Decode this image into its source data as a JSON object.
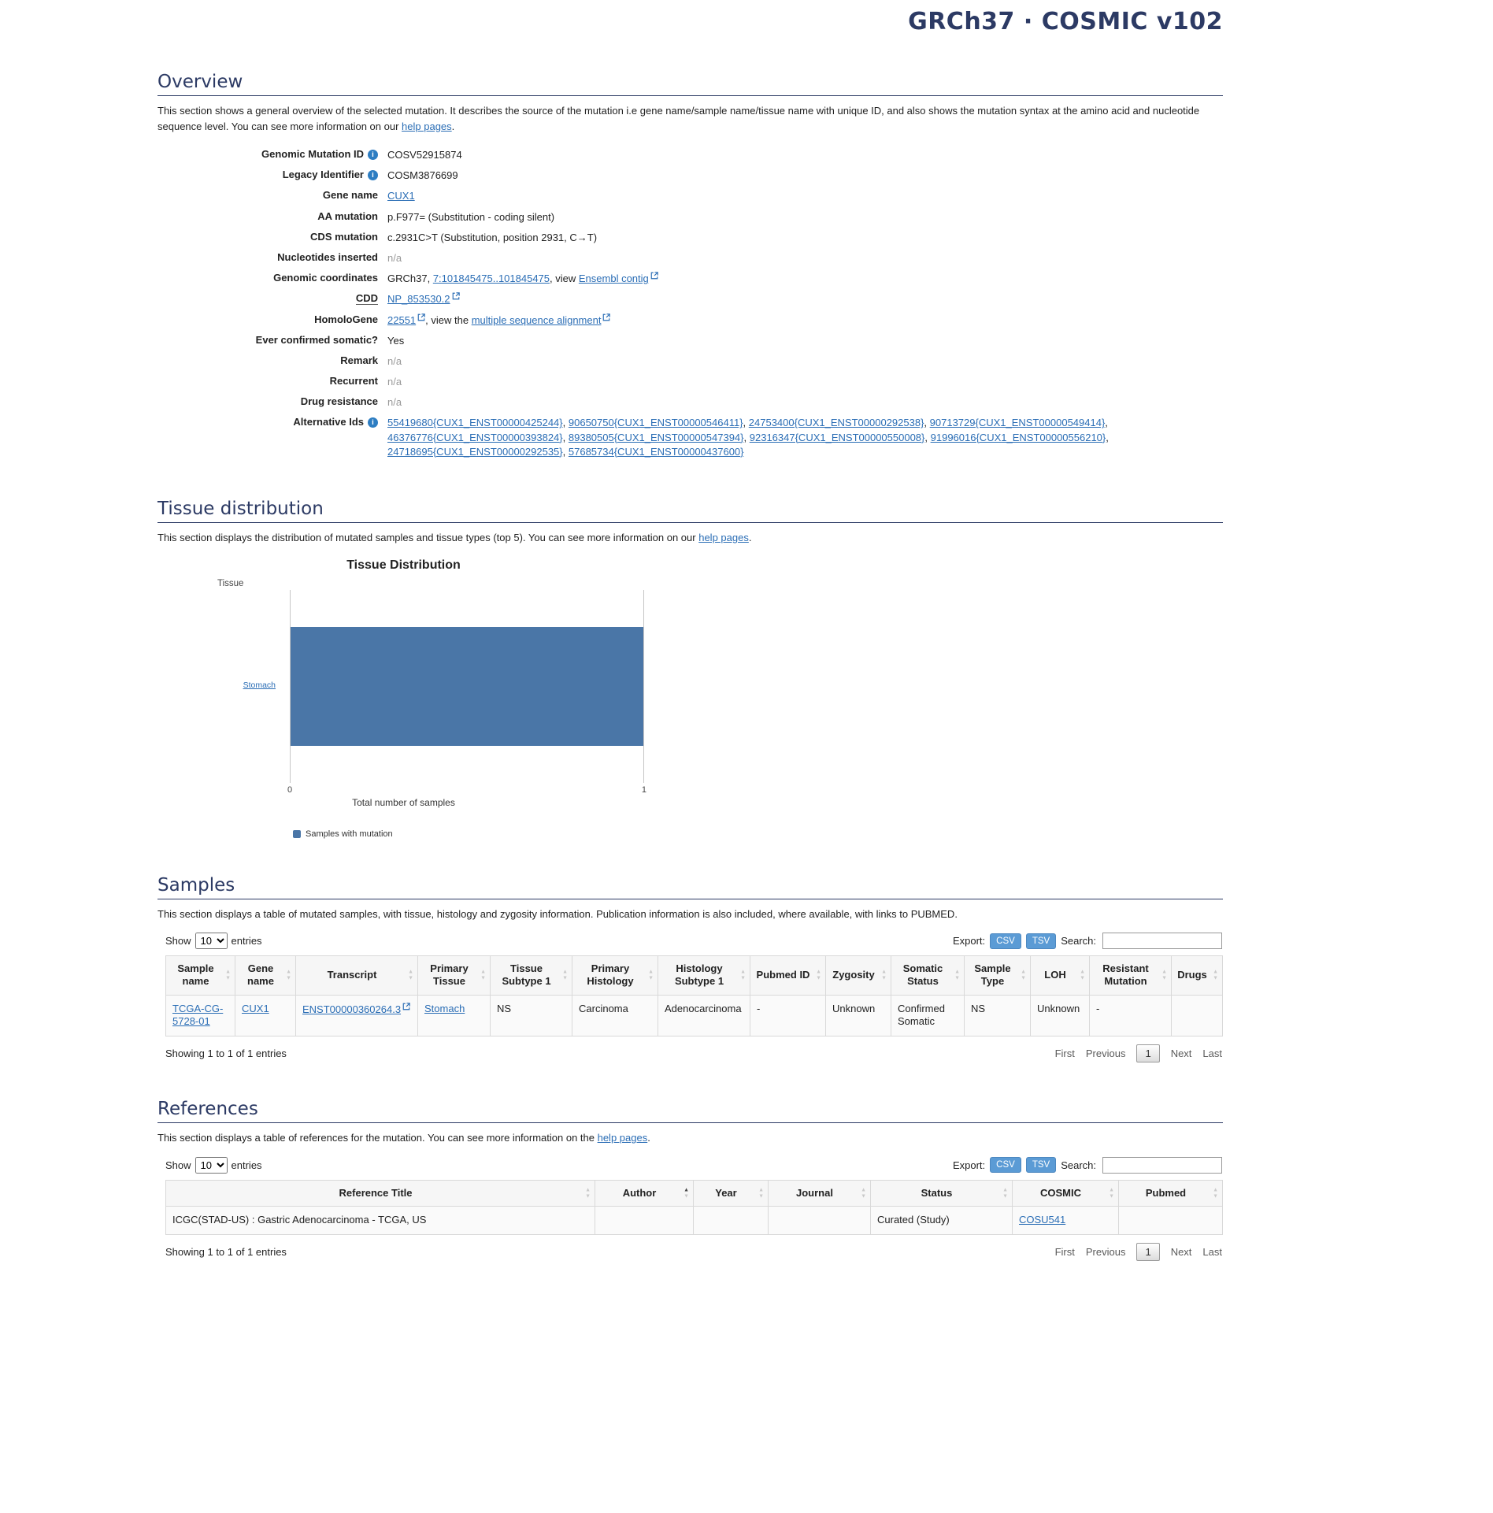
{
  "icons": {
    "info": "i",
    "sort_asc": "▲",
    "sort_desc": "▼",
    "external": "↗"
  },
  "colors": {
    "heading": "#2c3a64",
    "link": "#2a6db5",
    "bar": "#4a76a7",
    "export_button": "#5b9bd5"
  },
  "page_header": {
    "title": "GRCh37 · COSMIC v102"
  },
  "overview": {
    "title": "Overview",
    "desc_pre": "This section shows a general overview of the selected mutation. It describes the source of the mutation i.e gene name/sample name/tissue name with unique ID, and also shows the mutation syntax at the amino acid and nucleotide sequence level. You can see more information on our ",
    "desc_link": "help pages",
    "desc_post": ".",
    "genomic_mutation_id": {
      "label": "Genomic Mutation ID",
      "value": "COSV52915874"
    },
    "legacy_identifier": {
      "label": "Legacy Identifier",
      "value": "COSM3876699"
    },
    "gene_name": {
      "label": "Gene name",
      "value": "CUX1"
    },
    "aa_mutation": {
      "label": "AA mutation",
      "value": "p.F977= (Substitution - coding silent)"
    },
    "cds_mutation": {
      "label": "CDS mutation",
      "value": "c.2931C>T (Substitution, position 2931, C→T)"
    },
    "nucleotides_inserted": {
      "label": "Nucleotides inserted",
      "value": "n/a"
    },
    "genomic_coordinates": {
      "label": "Genomic coordinates",
      "prefix": "GRCh37, ",
      "coords_link": "7:101845475..101845475",
      "mid": ", view ",
      "contig_link": "Ensembl contig"
    },
    "cdd": {
      "label": "CDD",
      "link": "NP_853530.2"
    },
    "homologene": {
      "label": "HomoloGene",
      "id_link": "22551",
      "mid": ", view the ",
      "msa_link": "multiple sequence alignment"
    },
    "ever_confirmed_somatic": {
      "label": "Ever confirmed somatic?",
      "value": "Yes"
    },
    "remark": {
      "label": "Remark",
      "value": "n/a"
    },
    "recurrent": {
      "label": "Recurrent",
      "value": "n/a"
    },
    "drug_resistance": {
      "label": "Drug resistance",
      "value": "n/a"
    },
    "alternative_ids": {
      "label": "Alternative Ids",
      "links": [
        {
          "text": "55419680{CUX1_ENST00000425244}",
          "sep": ", "
        },
        {
          "text": "90650750{CUX1_ENST00000546411}",
          "sep": ", "
        },
        {
          "text": "24753400{CUX1_ENST00000292538}",
          "sep": ", "
        },
        {
          "text": "90713729{CUX1_ENST00000549414}",
          "sep": ", "
        },
        {
          "text": "46376776{CUX1_ENST00000393824}",
          "sep": ", "
        },
        {
          "text": "89380505{CUX1_ENST00000547394}",
          "sep": ", "
        },
        {
          "text": "92316347{CUX1_ENST00000550008}",
          "sep": ", "
        },
        {
          "text": "91996016{CUX1_ENST00000556210}",
          "sep": ", "
        },
        {
          "text": "24718695{CUX1_ENST00000292535}",
          "sep": ", "
        },
        {
          "text": "57685734{CUX1_ENST00000437600}",
          "sep": ""
        }
      ]
    }
  },
  "tissue_distribution": {
    "title": "Tissue distribution",
    "desc_pre": "This section displays the distribution of mutated samples and tissue types (top 5). You can see more information on our ",
    "desc_link": "help pages",
    "desc_post": "."
  },
  "chart_data": {
    "type": "bar",
    "orientation": "horizontal",
    "title": "Tissue Distribution",
    "ylabel": "Tissue",
    "xlabel": "Total number of samples",
    "categories": [
      "Stomach"
    ],
    "values": [
      1
    ],
    "xlim": [
      0,
      1
    ],
    "x_ticks": [
      "0",
      "1"
    ],
    "legend": [
      "Samples with mutation"
    ],
    "legend_position": "bottom-left",
    "grid": "vertical-edges",
    "bar_color": "#4a76a7"
  },
  "samples": {
    "title": "Samples",
    "desc": "This section displays a table of mutated samples, with tissue, histology and zygosity information. Publication information is also included, where available, with links to PUBMED.",
    "controls": {
      "show_label": "Show",
      "entries_value": "10",
      "entries_label": "entries",
      "export_label": "Export:",
      "csv_label": "CSV",
      "tsv_label": "TSV",
      "search_label": "Search:"
    },
    "table": {
      "headers": [
        "Sample name",
        "Gene name",
        "Transcript",
        "Primary Tissue",
        "Tissue Subtype 1",
        "Primary Histology",
        "Histology Subtype 1",
        "Pubmed ID",
        "Zygosity",
        "Somatic Status",
        "Sample Type",
        "LOH",
        "Resistant Mutation",
        "Drugs"
      ],
      "row": {
        "sample_name": "TCGA-CG-5728-01",
        "gene_name": "CUX1",
        "transcript": "ENST00000360264.3",
        "primary_tissue": "Stomach",
        "tissue_subtype_1": "NS",
        "primary_histology": "Carcinoma",
        "histology_subtype_1": "Adenocarcinoma",
        "pubmed_id": "-",
        "zygosity": "Unknown",
        "somatic_status": "Confirmed Somatic",
        "sample_type": "NS",
        "loh": "Unknown",
        "resistant_mutation": "-",
        "drugs": ""
      }
    },
    "footer": {
      "info": "Showing 1 to 1 of 1 entries",
      "pagination": {
        "first": "First",
        "previous": "Previous",
        "page": "1",
        "next": "Next",
        "last": "Last"
      }
    }
  },
  "references": {
    "title": "References",
    "desc_pre": "This section displays a table of references for the mutation. You can see more information on the ",
    "desc_link": "help pages",
    "desc_post": ".",
    "controls": {
      "show_label": "Show",
      "entries_value": "10",
      "entries_label": "entries",
      "export_label": "Export:",
      "csv_label": "CSV",
      "tsv_label": "TSV",
      "search_label": "Search:"
    },
    "table": {
      "headers": [
        "Reference Title",
        "Author",
        "Year",
        "Journal",
        "Status",
        "COSMIC",
        "Pubmed"
      ],
      "row": {
        "reference_title": "ICGC(STAD-US) : Gastric Adenocarcinoma - TCGA, US",
        "author": "",
        "year": "",
        "journal": "",
        "status": "Curated (Study)",
        "cosmic": "COSU541",
        "pubmed": ""
      }
    },
    "footer": {
      "info": "Showing 1 to 1 of 1 entries",
      "pagination": {
        "first": "First",
        "previous": "Previous",
        "page": "1",
        "next": "Next",
        "last": "Last"
      }
    }
  }
}
